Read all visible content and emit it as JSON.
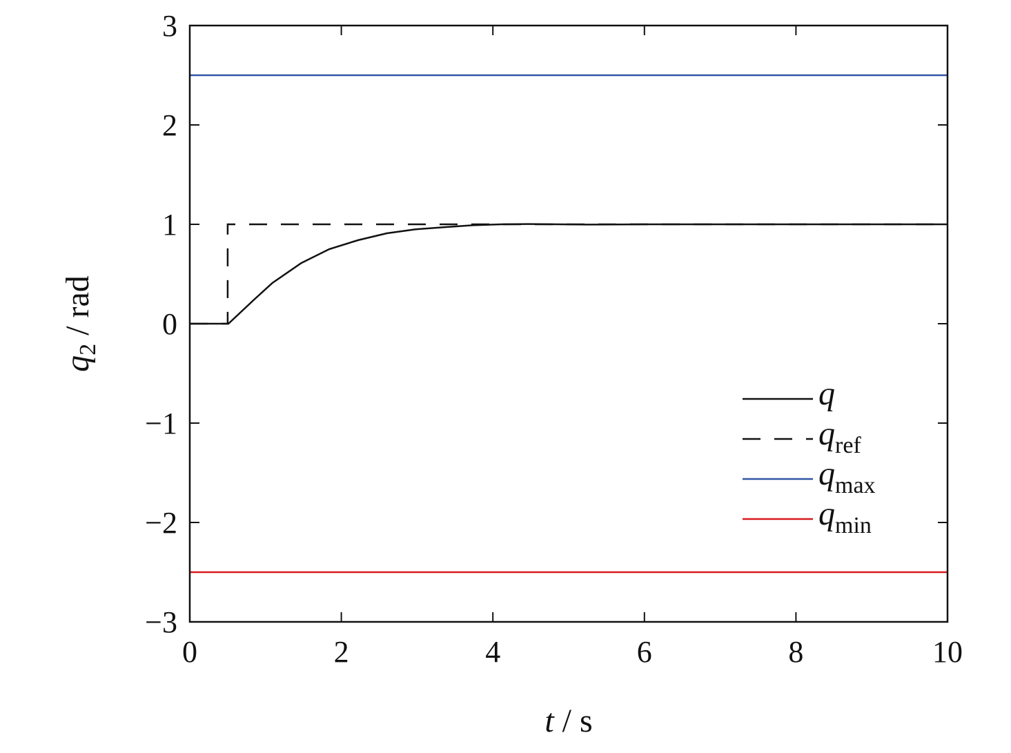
{
  "chart_data": {
    "type": "line",
    "title": "",
    "xlabel": {
      "var": "t",
      "unit": "s"
    },
    "ylabel": {
      "var": "q",
      "sub": "2",
      "unit": "rad"
    },
    "xlim": [
      0,
      10
    ],
    "ylim": [
      -3,
      3
    ],
    "xticks": [
      "0",
      "2",
      "4",
      "6",
      "8",
      "10"
    ],
    "yticks": [
      "3",
      "2",
      "1",
      "0",
      "−1",
      "−2",
      "−3"
    ],
    "grid": false,
    "legend_position": "lower-right",
    "series": [
      {
        "name": "q",
        "sub": "",
        "color": "#111111",
        "dash": "solid",
        "x": [
          0,
          0.51,
          0.86,
          1.09,
          1.47,
          1.84,
          2.22,
          2.6,
          2.98,
          3.35,
          3.73,
          4.11,
          4.49,
          5.25,
          6,
          10
        ],
        "y": [
          0,
          0,
          0.25,
          0.41,
          0.61,
          0.75,
          0.84,
          0.91,
          0.95,
          0.97,
          0.99,
          1.0,
          1.003,
          0.997,
          1.0,
          1.0
        ]
      },
      {
        "name": "q",
        "sub": "ref",
        "color": "#111111",
        "dash": "dashed",
        "x": [
          0,
          0.5,
          0.5,
          10
        ],
        "y": [
          0,
          0,
          1,
          1
        ]
      },
      {
        "name": "q",
        "sub": "max",
        "color": "#2f55a4",
        "dash": "solid",
        "x": [
          0,
          10
        ],
        "y": [
          2.5,
          2.5
        ]
      },
      {
        "name": "q",
        "sub": "min",
        "color": "#d7191c",
        "dash": "solid",
        "x": [
          0,
          10
        ],
        "y": [
          -2.5,
          -2.5
        ]
      }
    ]
  }
}
